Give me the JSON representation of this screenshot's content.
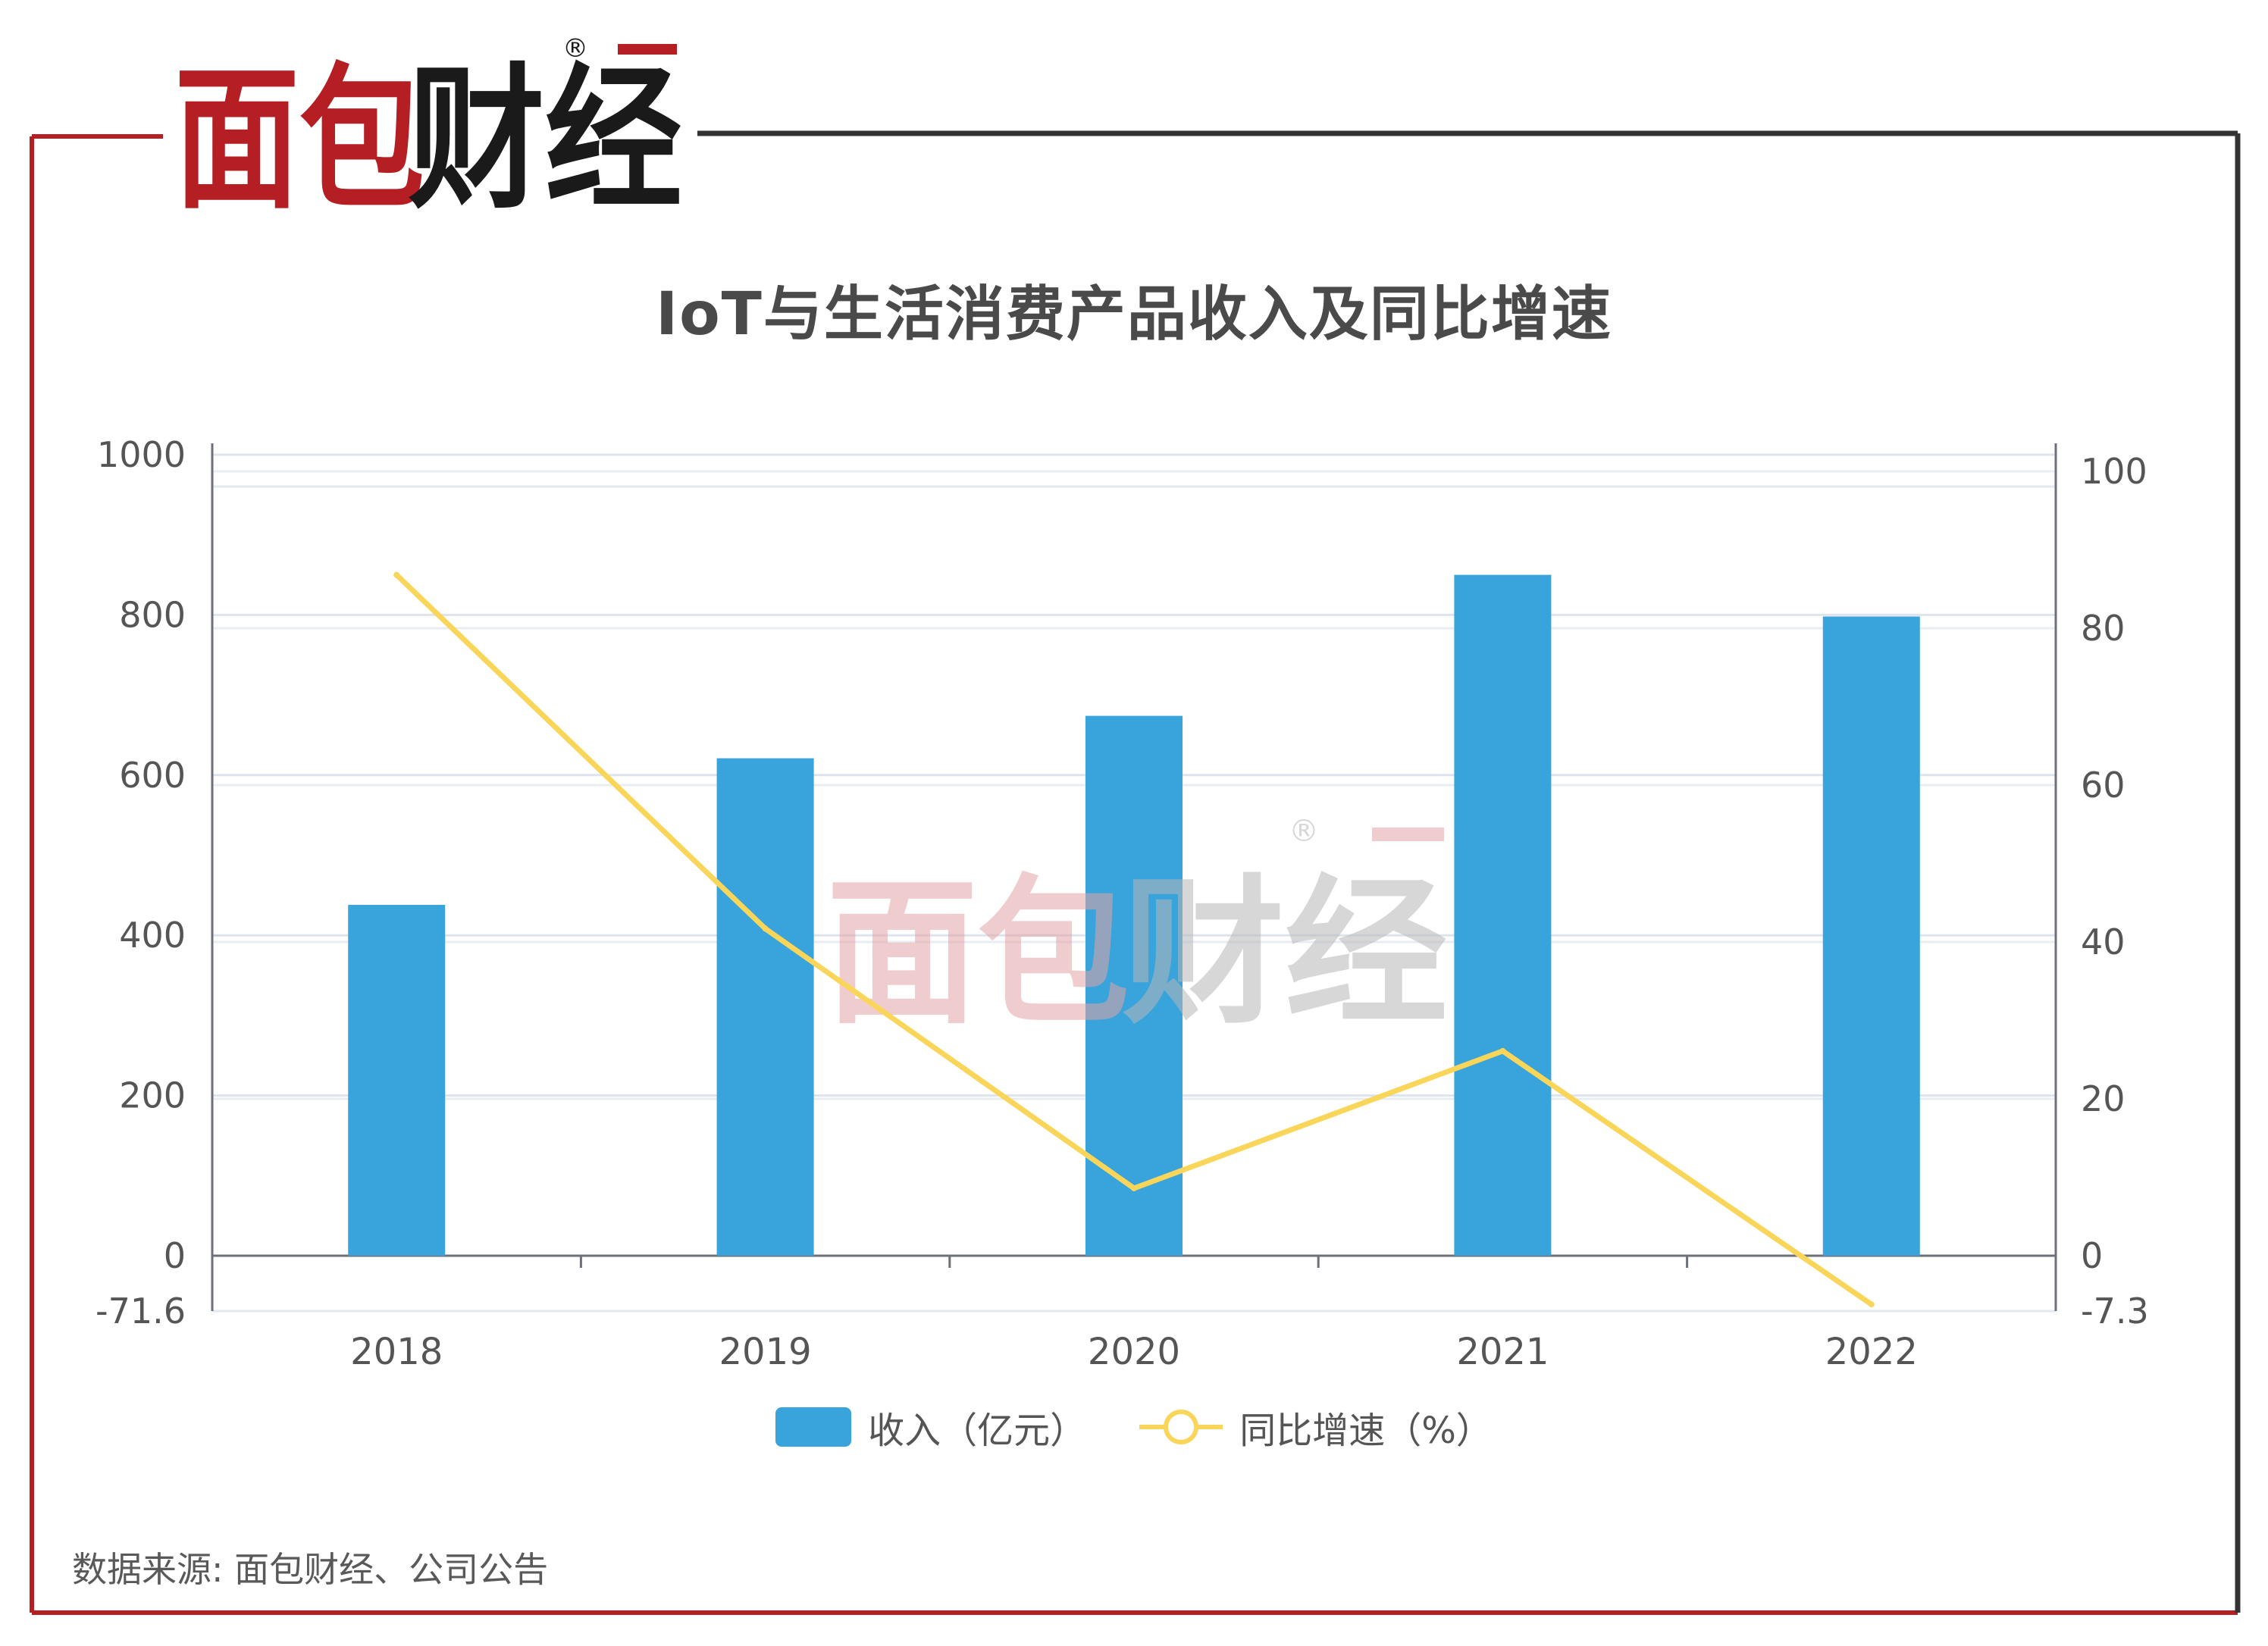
{
  "brand": {
    "logo_text": "面包财经",
    "registered_mark": "®",
    "accent_color": "#b51f24"
  },
  "title": "IoT与生活消费产品收入及同比增速",
  "source": "数据来源: 面包财经、公司公告",
  "colors": {
    "bar": "#39a3db",
    "line": "#f9d55a",
    "frame_red": "#b51f24",
    "frame_dark": "#333333",
    "grid": "#dde4ee",
    "axis_text": "#555555"
  },
  "chart_data": {
    "type": "bar",
    "categories": [
      "2018",
      "2019",
      "2020",
      "2021",
      "2022"
    ],
    "series": [
      {
        "name": "收入（亿元）",
        "type": "bar",
        "axis": "left",
        "values": [
          438,
          621,
          674,
          850,
          798
        ]
      },
      {
        "name": "同比增速（%）",
        "type": "line",
        "axis": "right",
        "values": [
          86.8,
          41.7,
          8.6,
          26.1,
          -6.2
        ]
      }
    ],
    "y_left": {
      "ticks": [
        "1000",
        "800",
        "600",
        "400",
        "200",
        "0",
        "-71.6"
      ],
      "min": -71.6,
      "max": 1000,
      "tick_values": [
        1000,
        800,
        600,
        400,
        200,
        0,
        -71.6
      ]
    },
    "y_right": {
      "ticks": [
        "100",
        "80",
        "60",
        "40",
        "20",
        "0",
        "-7.3"
      ],
      "min": -7.3,
      "max": 100,
      "tick_values": [
        100,
        80,
        60,
        40,
        20,
        0,
        -7.3
      ]
    },
    "grid": true,
    "legend_position": "bottom-center"
  }
}
